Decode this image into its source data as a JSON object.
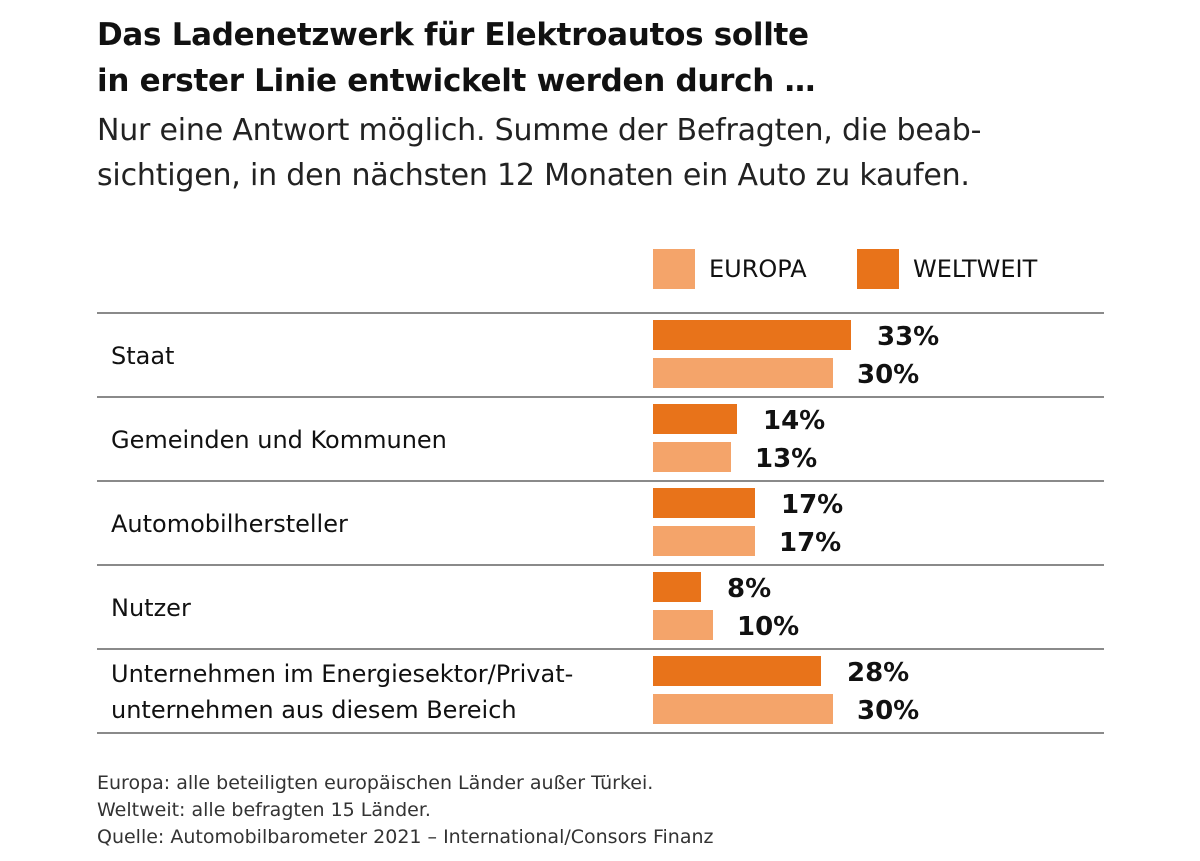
{
  "chart_data": {
    "type": "bar",
    "orientation": "horizontal",
    "title": "Das Ladenetzwerk für Elektroautos sollte in erster Linie entwickelt werden durch …",
    "title_lines": [
      "Das Ladenetzwerk für Elektroautos sollte",
      "in erster Linie entwickelt werden durch …"
    ],
    "subtitle_lines": [
      "Nur eine Antwort möglich. Summe der Befragten, die beab-",
      "sichtigen, in den nächsten 12 Monaten ein Auto zu kaufen."
    ],
    "legend": [
      {
        "name": "EUROPA",
        "color": "#f4a46a"
      },
      {
        "name": "WELTWEIT",
        "color": "#e8731a"
      }
    ],
    "categories": [
      {
        "label_lines": [
          "Staat"
        ],
        "weltweit": 33,
        "europa": 30,
        "weltweit_label": "33%",
        "europa_label": "30%"
      },
      {
        "label_lines": [
          "Gemeinden und Kommunen"
        ],
        "weltweit": 14,
        "europa": 13,
        "weltweit_label": "14%",
        "europa_label": "13%"
      },
      {
        "label_lines": [
          "Automobilhersteller"
        ],
        "weltweit": 17,
        "europa": 17,
        "weltweit_label": "17%",
        "europa_label": "17%"
      },
      {
        "label_lines": [
          "Nutzer"
        ],
        "weltweit": 8,
        "europa": 10,
        "weltweit_label": "8%",
        "europa_label": "10%"
      },
      {
        "label_lines": [
          "Unternehmen im Energiesektor/Privat-",
          "unternehmen aus diesem Bereich"
        ],
        "weltweit": 28,
        "europa": 30,
        "weltweit_label": "28%",
        "europa_label": "30%"
      }
    ],
    "unit": "%",
    "xlim": [
      0,
      33
    ]
  },
  "footer": {
    "lines": [
      "Europa: alle beteiligten europäischen Länder außer Türkei.",
      "Weltweit: alle befragten 15 Länder.",
      "Quelle: Automobilbarometer 2021 – International/Consors Finanz"
    ]
  }
}
